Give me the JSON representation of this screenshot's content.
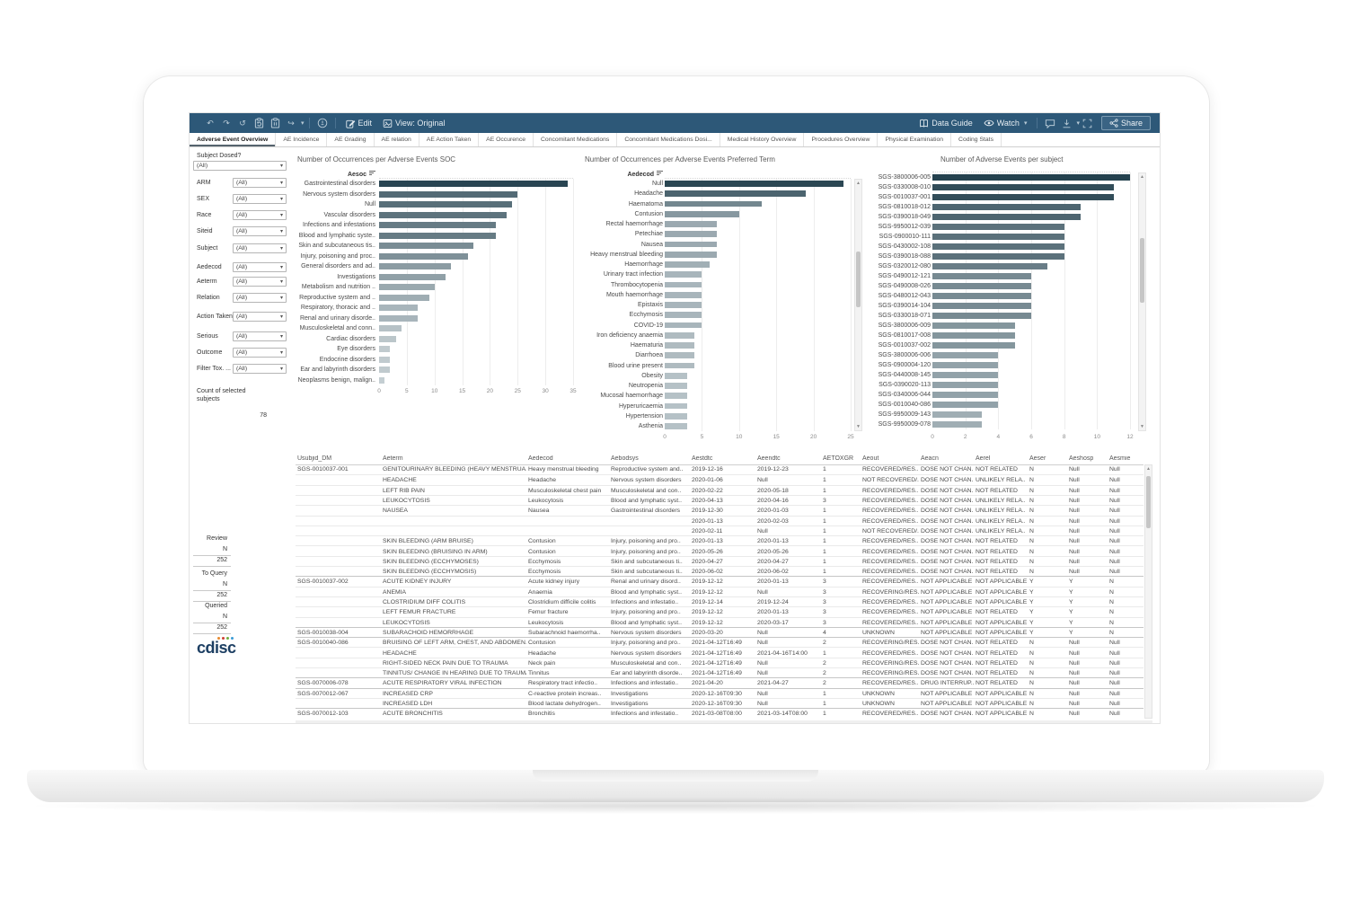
{
  "toolbar": {
    "edit_label": "Edit",
    "view_label": "View: Original",
    "data_guide_label": "Data Guide",
    "watch_label": "Watch",
    "share_label": "Share",
    "icons": {
      "undo": "↶",
      "redo": "↷",
      "revert": "↺",
      "refresh": "clipboard-refresh",
      "pause": "clipboard-pause",
      "forward": "↪",
      "alerts": "bell",
      "edit": "✎",
      "view": "image",
      "data_guide": "book",
      "watch": "eye",
      "comments": "speech-bubble",
      "download": "download-tray",
      "fullscreen": "corner-brackets",
      "share": "share-nodes"
    },
    "colors": {
      "bg": "#2d5878",
      "icon": "#b9cbd7",
      "text": "#e6edf2"
    }
  },
  "tabs": [
    "Adverse Event Overview",
    "AE Incidence",
    "AE Grading",
    "AE relation",
    "AE Action Taken",
    "AE Occurence",
    "Concomitant Medications",
    "Concomitant Medications Dosi...",
    "Medical History Overview",
    "Procedures Overview",
    "Physical Examination",
    "Coding Stats"
  ],
  "active_tab": "Adverse Event Overview",
  "filters": {
    "subject_dosed": {
      "label": "Subject Dosed?",
      "value": "(All)"
    },
    "items": [
      {
        "label": "ARM",
        "value": "(All)"
      },
      {
        "label": "SEX",
        "value": "(All)"
      },
      {
        "label": "Race",
        "value": "(All)"
      },
      {
        "label": "Siteid",
        "value": "(All)"
      },
      {
        "label": "Subject",
        "value": "(All)"
      },
      {
        "label": "Aedecod",
        "value": "(All)"
      },
      {
        "label": "Aeterm",
        "value": "(All)"
      },
      {
        "label": "Relation",
        "value": "(All)"
      },
      {
        "label": "Action Taken",
        "value": "(All)"
      },
      {
        "label": "Serious",
        "value": "(All)"
      },
      {
        "label": "Outcome",
        "value": "(All)"
      },
      {
        "label": "Filter Tox. ...",
        "value": "(All)"
      }
    ],
    "count_label": "Count of selected subjects",
    "count_value": "78"
  },
  "status_blocks": [
    {
      "title": "Review",
      "col": "N",
      "value": "252"
    },
    {
      "title": "To Query",
      "col": "N",
      "value": "252"
    },
    {
      "title": "Queried",
      "col": "N",
      "value": "252"
    }
  ],
  "logo_text": "cdisc",
  "logo_dot_colors": [
    "#e88a2e",
    "#cf3f33",
    "#6fae3f",
    "#3a9bd5"
  ],
  "chart_colors": {
    "bar_dark": "#24414e",
    "bar_light": "#c9d2d6"
  },
  "chart_data": [
    {
      "type": "bar",
      "orientation": "horizontal",
      "title": "Number of Occurrences per Adverse Events SOC",
      "axis_header": "Aesoc",
      "categories": [
        "Gastrointestinal disorders",
        "Nervous system disorders",
        "Null",
        "Vascular disorders",
        "Infections and infestations",
        "Blood and lymphatic syste..",
        "Skin and subcutaneous tis..",
        "Injury, poisoning and proc..",
        "General disorders and ad..",
        "Investigations",
        "Metabolism and nutrition ..",
        "Reproductive system and ..",
        "Respiratory, thoracic and ..",
        "Renal and urinary disorde..",
        "Musculoskeletal and conn..",
        "Cardiac disorders",
        "Eye disorders",
        "Endocrine disorders",
        "Ear and labyrinth disorders",
        "Neoplasms benign, malign.."
      ],
      "values": [
        34,
        25,
        24,
        23,
        21,
        21,
        17,
        16,
        13,
        12,
        10,
        9,
        7,
        7,
        4,
        3,
        2,
        2,
        2,
        1
      ],
      "xlim": [
        0,
        35
      ],
      "xticks": [
        0,
        5,
        10,
        15,
        20,
        25,
        30,
        35
      ],
      "grid": true,
      "scrollbar": false
    },
    {
      "type": "bar",
      "orientation": "horizontal",
      "title": "Number of Occurrences per Adverse Events Preferred Term",
      "axis_header": "Aedecod",
      "categories": [
        "Null",
        "Headache",
        "Haematoma",
        "Contusion",
        "Rectal haemorrhage",
        "Petechiae",
        "Nausea",
        "Heavy menstrual bleeding",
        "Haemorrhage",
        "Urinary tract infection",
        "Thrombocytopenia",
        "Mouth haemorrhage",
        "Epistaxis",
        "Ecchymosis",
        "COVID-19",
        "Iron deficiency anaemia",
        "Haematuria",
        "Diarrhoea",
        "Blood urine present",
        "Obesity",
        "Neutropenia",
        "Mucosal haemorrhage",
        "Hyperuricaemia",
        "Hypertension",
        "Asthenia"
      ],
      "values": [
        24,
        19,
        13,
        10,
        7,
        7,
        7,
        7,
        6,
        5,
        5,
        5,
        5,
        5,
        5,
        4,
        4,
        4,
        4,
        3,
        3,
        3,
        3,
        3,
        3
      ],
      "xlim": [
        0,
        25
      ],
      "xticks": [
        0,
        5,
        10,
        15,
        20,
        25
      ],
      "grid": true,
      "scrollbar": true
    },
    {
      "type": "bar",
      "orientation": "horizontal",
      "title": "Number of Adverse Events per subject",
      "axis_header": null,
      "categories": [
        "SGS-3800006-005",
        "SGS-0330008-010",
        "SGS-0010037-001",
        "SGS-0810018-012",
        "SGS-0390018-049",
        "SGS-9950012-039",
        "SGS-0900010-111",
        "SGS-0430002-108",
        "SGS-0390018-088",
        "SGS-0320012-080",
        "SGS-0490012-121",
        "SGS-0490008-026",
        "SGS-0480012-043",
        "SGS-0390014-104",
        "SGS-0330018-071",
        "SGS-3800006-009",
        "SGS-0810017-008",
        "SGS-0010037-002",
        "SGS-3800006-006",
        "SGS-0900004-120",
        "SGS-0440008-145",
        "SGS-0390020-113",
        "SGS-0340006-044",
        "SGS-0010040-086",
        "SGS-9950009-143",
        "SGS-9950009-078"
      ],
      "values": [
        12,
        11,
        11,
        9,
        9,
        8,
        8,
        8,
        8,
        7,
        6,
        6,
        6,
        6,
        6,
        5,
        5,
        5,
        4,
        4,
        4,
        4,
        4,
        4,
        3,
        3
      ],
      "xlim": [
        0,
        12
      ],
      "xticks": [
        0,
        2,
        4,
        6,
        8,
        10,
        12
      ],
      "grid": true,
      "scrollbar": true
    }
  ],
  "table": {
    "columns": [
      "Usubjid_DM",
      "Aeterm",
      "Aedecod",
      "Aebodsys",
      "Aestdtc",
      "Aeendtc",
      "AETOXGR",
      "Aeout",
      "Aeacn",
      "Aerel",
      "Aeser",
      "Aeshosp",
      "Aesmie"
    ],
    "rows": [
      [
        "SGS-0010037-001",
        "GENITOURINARY BLEEDING (HEAVY MENSTRUA..",
        "Heavy menstrual bleeding",
        "Reproductive system and..",
        "2019-12-16",
        "2019-12-23",
        "1",
        "RECOVERED/RES..",
        "DOSE NOT CHAN..",
        "NOT RELATED",
        "N",
        "Null",
        "Null"
      ],
      [
        "",
        "HEADACHE",
        "Headache",
        "Nervous system disorders",
        "2020-01-06",
        "Null",
        "1",
        "NOT RECOVERED/..",
        "DOSE NOT CHAN..",
        "UNLIKELY RELA..",
        "N",
        "Null",
        "Null"
      ],
      [
        "",
        "LEFT RIB PAIN",
        "Musculoskeletal chest pain",
        "Musculoskeletal and con..",
        "2020-02-22",
        "2020-05-18",
        "1",
        "RECOVERED/RES..",
        "DOSE NOT CHAN..",
        "NOT RELATED",
        "N",
        "Null",
        "Null"
      ],
      [
        "",
        "LEUKOCYTOSIS",
        "Leukocytosis",
        "Blood and lymphatic syst..",
        "2020-04-13",
        "2020-04-16",
        "3",
        "RECOVERED/RES..",
        "DOSE NOT CHAN..",
        "UNLIKELY RELA..",
        "N",
        "Null",
        "Null"
      ],
      [
        "",
        "NAUSEA",
        "Nausea",
        "Gastrointestinal disorders",
        "2019-12-30",
        "2020-01-03",
        "1",
        "RECOVERED/RES..",
        "DOSE NOT CHAN..",
        "UNLIKELY RELA..",
        "N",
        "Null",
        "Null"
      ],
      [
        "",
        "",
        "",
        "",
        "2020-01-13",
        "2020-02-03",
        "1",
        "RECOVERED/RES..",
        "DOSE NOT CHAN..",
        "UNLIKELY RELA..",
        "N",
        "Null",
        "Null"
      ],
      [
        "",
        "",
        "",
        "",
        "2020-02-11",
        "Null",
        "1",
        "NOT RECOVERED/..",
        "DOSE NOT CHAN..",
        "UNLIKELY RELA..",
        "N",
        "Null",
        "Null"
      ],
      [
        "",
        "SKIN BLEEDING (ARM BRUISE)",
        "Contusion",
        "Injury, poisoning and pro..",
        "2020-01-13",
        "2020-01-13",
        "1",
        "RECOVERED/RES..",
        "DOSE NOT CHAN..",
        "NOT RELATED",
        "N",
        "Null",
        "Null"
      ],
      [
        "",
        "SKIN BLEEDING (BRUISING IN ARM)",
        "Contusion",
        "Injury, poisoning and pro..",
        "2020-05-26",
        "2020-05-26",
        "1",
        "RECOVERED/RES..",
        "DOSE NOT CHAN..",
        "NOT RELATED",
        "N",
        "Null",
        "Null"
      ],
      [
        "",
        "SKIN BLEEDING (ECCHYMOSES)",
        "Ecchymosis",
        "Skin and subcutaneous ti..",
        "2020-04-27",
        "2020-04-27",
        "1",
        "RECOVERED/RES..",
        "DOSE NOT CHAN..",
        "NOT RELATED",
        "N",
        "Null",
        "Null"
      ],
      [
        "",
        "SKIN BLEEDING (ECCHYMOSIS)",
        "Ecchymosis",
        "Skin and subcutaneous ti..",
        "2020-06-02",
        "2020-06-02",
        "1",
        "RECOVERED/RES..",
        "DOSE NOT CHAN..",
        "NOT RELATED",
        "N",
        "Null",
        "Null"
      ],
      [
        "SGS-0010037-002",
        "ACUTE KIDNEY INJURY",
        "Acute kidney injury",
        "Renal and urinary disord..",
        "2019-12-12",
        "2020-01-13",
        "3",
        "RECOVERED/RES..",
        "NOT APPLICABLE",
        "NOT APPLICABLE",
        "Y",
        "Y",
        "N"
      ],
      [
        "",
        "ANEMIA",
        "Anaemia",
        "Blood and lymphatic syst..",
        "2019-12-12",
        "Null",
        "3",
        "RECOVERING/RES..",
        "NOT APPLICABLE",
        "NOT APPLICABLE",
        "Y",
        "Y",
        "N"
      ],
      [
        "",
        "CLOSTRIDIUM DIFF COLITIS",
        "Clostridium difficile colitis",
        "Infections and infestatio..",
        "2019-12-14",
        "2019-12-24",
        "3",
        "RECOVERED/RES..",
        "NOT APPLICABLE",
        "NOT APPLICABLE",
        "Y",
        "Y",
        "N"
      ],
      [
        "",
        "LEFT FEMUR FRACTURE",
        "Femur fracture",
        "Injury, poisoning and pro..",
        "2019-12-12",
        "2020-01-13",
        "3",
        "RECOVERED/RES..",
        "NOT APPLICABLE",
        "NOT RELATED",
        "Y",
        "Y",
        "N"
      ],
      [
        "",
        "LEUKOCYTOSIS",
        "Leukocytosis",
        "Blood and lymphatic syst..",
        "2019-12-12",
        "2020-03-17",
        "3",
        "RECOVERED/RES..",
        "NOT APPLICABLE",
        "NOT APPLICABLE",
        "Y",
        "Y",
        "N"
      ],
      [
        "SGS-0010038-004",
        "SUBARACHOID HEMORRHAGE",
        "Subarachnoid haemorrha..",
        "Nervous system disorders",
        "2020-03-20",
        "Null",
        "4",
        "UNKNOWN",
        "NOT APPLICABLE",
        "NOT APPLICABLE",
        "Y",
        "Y",
        "N"
      ],
      [
        "SGS-0010040-086",
        "BRUISING OF LEFT ARM, CHEST, AND ABDOMEN..",
        "Contusion",
        "Injury, poisoning and pro..",
        "2021-04-12T16:49",
        "Null",
        "2",
        "RECOVERING/RES..",
        "DOSE NOT CHAN..",
        "NOT RELATED",
        "N",
        "Null",
        "Null"
      ],
      [
        "",
        "HEADACHE",
        "Headache",
        "Nervous system disorders",
        "2021-04-12T16:49",
        "2021-04-16T14:00",
        "1",
        "RECOVERED/RES..",
        "DOSE NOT CHAN..",
        "NOT RELATED",
        "N",
        "Null",
        "Null"
      ],
      [
        "",
        "RIGHT-SIDED NECK PAIN DUE TO TRAUMA",
        "Neck pain",
        "Musculoskeletal and con..",
        "2021-04-12T16:49",
        "Null",
        "2",
        "RECOVERING/RES..",
        "DOSE NOT CHAN..",
        "NOT RELATED",
        "N",
        "Null",
        "Null"
      ],
      [
        "",
        "TINNITUS/ CHANGE IN HEARING DUE TO TRAUMA",
        "Tinnitus",
        "Ear and labyrinth disorde..",
        "2021-04-12T16:49",
        "Null",
        "2",
        "RECOVERING/RES..",
        "DOSE NOT CHAN..",
        "NOT RELATED",
        "N",
        "Null",
        "Null"
      ],
      [
        "SGS-0070006-078",
        "ACUTE RESPIRATORY VIRAL INFECTION",
        "Respiratory tract infectio..",
        "Infections and infestatio..",
        "2021-04-20",
        "2021-04-27",
        "2",
        "RECOVERED/RES..",
        "DRUG INTERRUP..",
        "NOT RELATED",
        "N",
        "Null",
        "Null"
      ],
      [
        "SGS-0070012-067",
        "INCREASED CRP",
        "C-reactive protein increas..",
        "Investigations",
        "2020-12-16T09:30",
        "Null",
        "1",
        "UNKNOWN",
        "NOT APPLICABLE",
        "NOT APPLICABLE",
        "N",
        "Null",
        "Null"
      ],
      [
        "",
        "INCREASED LDH",
        "Blood lactate dehydrogen..",
        "Investigations",
        "2020-12-16T09:30",
        "Null",
        "1",
        "UNKNOWN",
        "NOT APPLICABLE",
        "NOT APPLICABLE",
        "N",
        "Null",
        "Null"
      ],
      [
        "SGS-0070012-103",
        "ACUTE BRONCHITIS",
        "Bronchitis",
        "Infections and infestatio..",
        "2021-03-08T08:00",
        "2021-03-14T08:00",
        "1",
        "RECOVERED/RES..",
        "DOSE NOT CHAN..",
        "NOT APPLICABLE",
        "N",
        "Null",
        "Null"
      ]
    ]
  }
}
